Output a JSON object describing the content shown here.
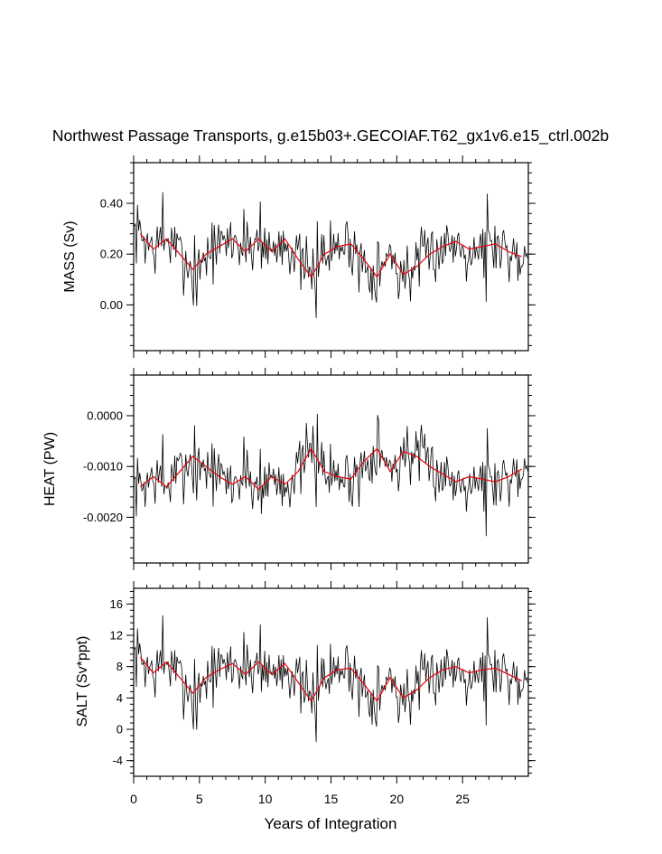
{
  "chart_data": {
    "type": "line",
    "title": "Northwest Passage Transports, g.e15b03+.GECOIAF.T62_gx1v6.e15_ctrl.002b",
    "xlabel": "Years of Integration",
    "xlim": [
      0,
      30
    ],
    "xticks": [
      0,
      5,
      10,
      15,
      20,
      25
    ],
    "xtick_labels": [
      "0",
      "5",
      "10",
      "15",
      "20",
      "25"
    ],
    "colors": {
      "monthly": "#000000",
      "annual": "#e8000b",
      "frame": "#000000"
    },
    "panels": [
      {
        "ylabel": "MASS (Sv)",
        "ylim": [
          -0.18,
          0.56
        ],
        "yticks": [
          0.0,
          0.2,
          0.4
        ],
        "ytick_labels": [
          "0.00",
          "0.20",
          "0.40"
        ],
        "series": [
          {
            "name": "annual mean",
            "x": [
              0.5,
              1.5,
              2.5,
              3.5,
              4.5,
              5.5,
              6.5,
              7.5,
              8.5,
              9.5,
              10.5,
              11.5,
              12.5,
              13.5,
              14.5,
              15.5,
              16.5,
              17.5,
              18.5,
              19.5,
              20.5,
              21.5,
              22.5,
              23.5,
              24.5,
              25.5,
              26.5,
              27.5,
              28.5,
              29.5
            ],
            "values": [
              0.28,
              0.22,
              0.26,
              0.2,
              0.14,
              0.2,
              0.23,
              0.26,
              0.21,
              0.26,
              0.21,
              0.26,
              0.18,
              0.11,
              0.2,
              0.23,
              0.24,
              0.18,
              0.11,
              0.2,
              0.12,
              0.15,
              0.2,
              0.23,
              0.25,
              0.22,
              0.23,
              0.24,
              0.21,
              0.19
            ]
          }
        ]
      },
      {
        "ylabel": "HEAT (PW)",
        "ylim": [
          -0.0029,
          0.0008
        ],
        "yticks": [
          -0.002,
          -0.001,
          0.0
        ],
        "ytick_labels": [
          "-0.0020",
          "-0.0010",
          "0.0000"
        ],
        "series": [
          {
            "name": "annual mean",
            "x": [
              0.5,
              1.5,
              2.5,
              3.5,
              4.5,
              5.5,
              6.5,
              7.5,
              8.5,
              9.5,
              10.5,
              11.5,
              12.5,
              13.5,
              14.5,
              15.5,
              16.5,
              17.5,
              18.5,
              19.5,
              20.5,
              21.5,
              22.5,
              23.5,
              24.5,
              25.5,
              26.5,
              27.5,
              28.5,
              29.5
            ],
            "values": [
              -0.0014,
              -0.0012,
              -0.0014,
              -0.0011,
              -0.0008,
              -0.001,
              -0.0012,
              -0.00135,
              -0.0012,
              -0.00145,
              -0.0012,
              -0.00135,
              -0.0011,
              -0.00065,
              -0.0011,
              -0.0012,
              -0.00125,
              -0.0009,
              -0.00065,
              -0.0011,
              -0.0007,
              -0.0008,
              -0.001,
              -0.00115,
              -0.0013,
              -0.0012,
              -0.00125,
              -0.0013,
              -0.0012,
              -0.00105
            ]
          }
        ]
      },
      {
        "ylabel": "SALT (Sv*ppt)",
        "ylim": [
          -6.0,
          18.0
        ],
        "yticks": [
          -4,
          0,
          4,
          8,
          12,
          16
        ],
        "ytick_labels": [
          "-4",
          "0",
          "4",
          "8",
          "12",
          "16"
        ],
        "series": [
          {
            "name": "annual mean",
            "x": [
              0.5,
              1.5,
              2.5,
              3.5,
              4.5,
              5.5,
              6.5,
              7.5,
              8.5,
              9.5,
              10.5,
              11.5,
              12.5,
              13.5,
              14.5,
              15.5,
              16.5,
              17.5,
              18.5,
              19.5,
              20.5,
              21.5,
              22.5,
              23.5,
              24.5,
              25.5,
              26.5,
              27.5,
              28.5,
              29.5
            ],
            "values": [
              9.2,
              7.2,
              8.6,
              6.6,
              4.6,
              6.6,
              7.6,
              8.4,
              7.0,
              8.6,
              7.0,
              8.4,
              6.0,
              3.6,
              6.6,
              7.6,
              7.8,
              5.8,
              3.6,
              6.6,
              4.0,
              5.0,
              6.6,
              7.6,
              8.0,
              7.2,
              7.6,
              7.8,
              7.0,
              6.2
            ]
          }
        ]
      }
    ]
  }
}
